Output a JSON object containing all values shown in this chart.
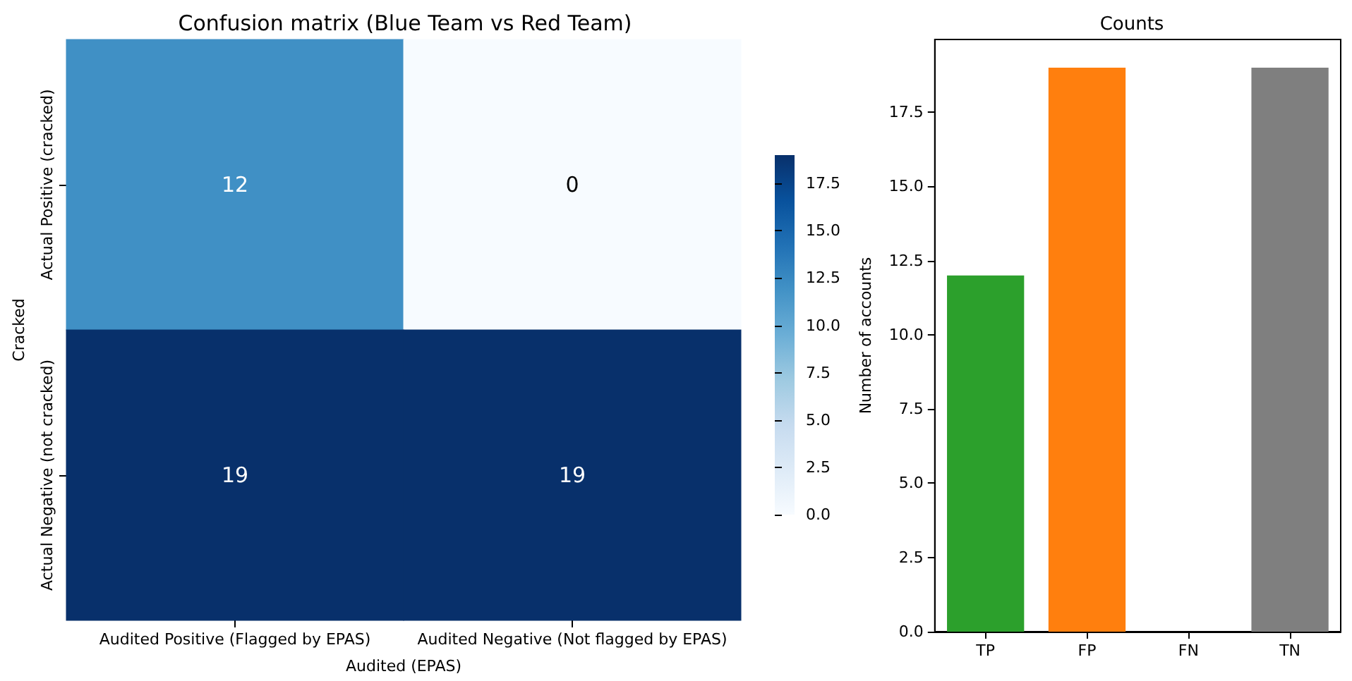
{
  "chart_data": [
    {
      "type": "heatmap",
      "title": "Confusion matrix (Blue Team vs Red Team)",
      "xlabel": "Audited (EPAS)",
      "ylabel": "Cracked",
      "categories": [
        "Audited Positive (Flagged by EPAS)",
        "Audited Negative (Not flagged by EPAS)"
      ],
      "y_categories": [
        "Actual Positive (cracked)",
        "Actual Negative (not cracked)"
      ],
      "cells": [
        [
          12,
          0
        ],
        [
          19,
          19
        ]
      ],
      "data_labels": true,
      "clim": [
        0,
        19
      ],
      "cticks": [
        {
          "value": 0,
          "label": "0.0"
        },
        {
          "value": 2.5,
          "label": "2.5"
        },
        {
          "value": 5,
          "label": "5.0"
        },
        {
          "value": 7.5,
          "label": "7.5"
        },
        {
          "value": 10,
          "label": "10.0"
        },
        {
          "value": 12.5,
          "label": "12.5"
        },
        {
          "value": 15,
          "label": "15.0"
        },
        {
          "value": 17.5,
          "label": "17.5"
        }
      ]
    },
    {
      "type": "bar",
      "title": "Counts",
      "ylabel": "Number of accounts",
      "categories": [
        "TP",
        "FP",
        "FN",
        "TN"
      ],
      "values": [
        12,
        19,
        0,
        19
      ],
      "colors": [
        "#2ca02c",
        "#ff7f0e",
        "#d62728",
        "#7f7f7f"
      ],
      "ylim": [
        0,
        19.95
      ],
      "yticks": [
        {
          "value": 0,
          "label": "0.0"
        },
        {
          "value": 2.5,
          "label": "2.5"
        },
        {
          "value": 5,
          "label": "5.0"
        },
        {
          "value": 7.5,
          "label": "7.5"
        },
        {
          "value": 10,
          "label": "10.0"
        },
        {
          "value": 12.5,
          "label": "12.5"
        },
        {
          "value": 15,
          "label": "15.0"
        },
        {
          "value": 17.5,
          "label": "17.5"
        }
      ],
      "grid": false
    }
  ]
}
